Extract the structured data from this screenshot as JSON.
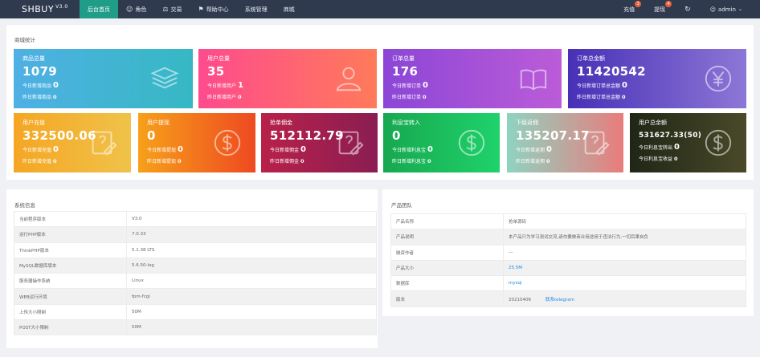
{
  "topbar": {
    "logo": "SHBUY",
    "version": "V3.0",
    "nav": [
      {
        "icon": "",
        "label": "后台首页"
      },
      {
        "icon": "user-icon",
        "label": "角色"
      },
      {
        "icon": "scale-icon",
        "label": "交易"
      },
      {
        "icon": "flag-icon",
        "label": "帮助中心"
      },
      {
        "icon": "",
        "label": "系统管理"
      },
      {
        "icon": "",
        "label": "商城"
      }
    ],
    "right": {
      "recharge_label": "充值",
      "recharge_badge": "3",
      "withdraw_label": "提现",
      "withdraw_badge": "4",
      "refresh_icon": "refresh-icon",
      "user_label": "admin"
    }
  },
  "stats": {
    "title": "商城统计",
    "cards": [
      {
        "label": "商品总量",
        "value": "1079",
        "line1": "今日新增商品",
        "line1_val": "0",
        "line2": "昨日新增商品",
        "line2_val": "0",
        "icon": "stack-icon",
        "color_a": "#4fb0e4",
        "color_b": "#36b8c3"
      },
      {
        "label": "用户总量",
        "value": "35",
        "line1": "今日新增用户",
        "line1_val": "1",
        "line2": "昨日新增用户",
        "line2_val": "0",
        "icon": "person-icon",
        "color_a": "#fe4b8d",
        "color_b": "#ff7a5a"
      },
      {
        "label": "订单总量",
        "value": "176",
        "line1": "今日新增订单",
        "line1_val": "0",
        "line2": "昨日新增订单",
        "line2_val": "0",
        "icon": "book-icon",
        "color_a": "#8c46d6",
        "color_b": "#bb5cd8"
      },
      {
        "label": "订单总金额",
        "value": "11420542",
        "line1": "今日新增订单总金额",
        "line1_val": "0",
        "line2": "昨日新增订单总金额",
        "line2_val": "0",
        "icon": "yen-icon",
        "color_a": "#4730b6",
        "color_b": "#8d77d6"
      },
      {
        "label": "用户充值",
        "value": "332500.06",
        "line1": "今日新增充值",
        "line1_val": "0",
        "line2": "昨日新增充值",
        "line2_val": "0",
        "icon": "note-icon",
        "color_a": "#f5a623",
        "color_b": "#f0c24a"
      },
      {
        "label": "用户提现",
        "value": "0",
        "line1": "今日新增提现",
        "line1_val": "0",
        "line2": "昨日新增提现",
        "line2_val": "0",
        "icon": "dollar-icon",
        "color_a": "#f7a01a",
        "color_b": "#ee4a20"
      },
      {
        "label": "抢单佣金",
        "value": "512112.79",
        "line1": "今日新增佣金",
        "line1_val": "0",
        "line2": "昨日新增佣金",
        "line2_val": "0",
        "icon": "note-icon",
        "color_a": "#b8214a",
        "color_b": "#8a1d52"
      },
      {
        "label": "利息宝转入",
        "value": "0",
        "line1": "今日新增利息宝",
        "line1_val": "0",
        "line2": "昨日新增利息宝",
        "line2_val": "0",
        "icon": "dollar-icon",
        "color_a": "#17a84f",
        "color_b": "#1fd26b"
      },
      {
        "label": "下级返佣",
        "value": "135207.17",
        "line1": "今日新增返佣",
        "line1_val": "0",
        "line2": "昨日新增返佣",
        "line2_val": "0",
        "icon": "note-icon",
        "color_a": "#8fd3c0",
        "color_b": "#e97c7c"
      },
      {
        "label": "用户总余额",
        "value": "531627.33(50)",
        "line1": "今日利息宝转出",
        "line1_val": "0",
        "line2": "今日利息宝收益",
        "line2_val": "0",
        "icon": "dollar-icon",
        "color_a": "#1f2616",
        "color_b": "#4a4a2a",
        "small": true
      }
    ]
  },
  "system": {
    "title": "系统信息",
    "rows": [
      {
        "k": "当前程序版本",
        "v": "V3.0"
      },
      {
        "k": "运行PHP版本",
        "v": "7.0.33"
      },
      {
        "k": "ThinkPHP版本",
        "v": "5.1.38 LTS"
      },
      {
        "k": "MySQL数据库版本",
        "v": "5.6.50-log"
      },
      {
        "k": "服务器操作系统",
        "v": "Linux"
      },
      {
        "k": "WEB运行环境",
        "v": "fpm-fcgi"
      },
      {
        "k": "上传大小限制",
        "v": "50M"
      },
      {
        "k": "POST大小限制",
        "v": "50M"
      }
    ]
  },
  "product": {
    "title": "产品团队",
    "rows": [
      {
        "k": "产品名称",
        "v": "抢单源码"
      },
      {
        "k": "产品说明",
        "v": "本产品只为学习测试交流,请勿要做商业用途用于违法行为,一切后果自负"
      },
      {
        "k": "融资作者",
        "v": "—"
      },
      {
        "k": "产品大小",
        "v": "25.5M",
        "link": true
      },
      {
        "k": "数据库",
        "v": "mysql",
        "link": true
      },
      {
        "k": "版本",
        "v": "20210406",
        "extra": "联系telegram"
      }
    ]
  }
}
